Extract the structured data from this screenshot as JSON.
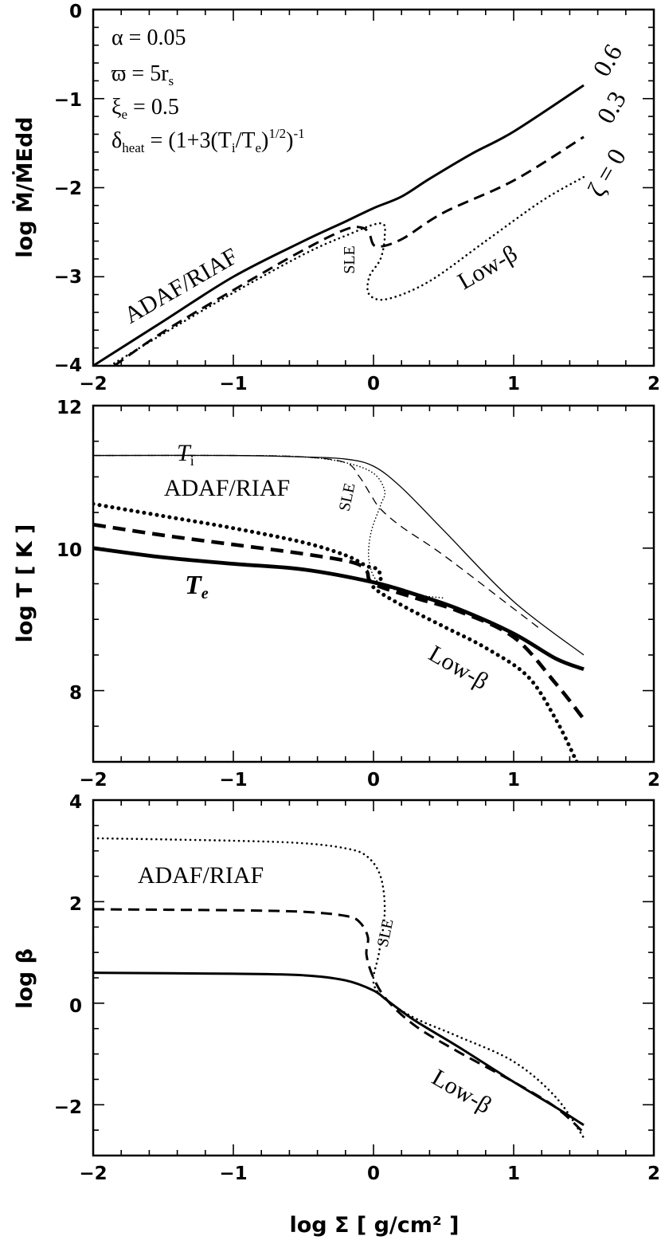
{
  "figure": {
    "xlabel": "log Σ [ g/cm² ]",
    "xticks": [
      "−2",
      "−1",
      "0",
      "1",
      "2"
    ]
  },
  "chart_data": [
    {
      "type": "line",
      "panel": "top",
      "xlim": [
        -2,
        2
      ],
      "ylim": [
        -4,
        0
      ],
      "ylabel": "log Ṁ/ṀEdd",
      "yticks": [
        "0",
        "−1",
        "−2",
        "−3",
        "−4"
      ],
      "params": {
        "alpha": "α = 0.05",
        "varpi": "ϖ = 5r",
        "varpi_sub": "s",
        "xi": "ξ",
        "xi_sub": "e",
        "xi_val": " = 0.5",
        "delta": "δ",
        "delta_sub": "heat",
        "delta_val": " = (1+3(T",
        "delta_i": "i",
        "delta_mid": "/T",
        "delta_e": "e",
        "delta_end": ")",
        "delta_exp1": "1/2",
        "delta_end2": ")",
        "delta_exp2": "-1"
      },
      "labels": {
        "adaf": "ADAF/RIAF",
        "sle": "SLE",
        "lowbeta": "Low-β",
        "z06": "0.6",
        "z03": "0.3",
        "z0": "ζ = 0"
      },
      "series": [
        {
          "name": "0.6",
          "style": "solid",
          "x": [
            -2,
            -1.5,
            -1,
            -0.5,
            -0.2,
            0,
            0.2,
            0.4,
            0.7,
            1.0,
            1.5
          ],
          "y": [
            -4.0,
            -3.5,
            -3.0,
            -2.6,
            -2.38,
            -2.23,
            -2.1,
            -1.9,
            -1.62,
            -1.37,
            -0.85
          ]
        },
        {
          "name": "0.3",
          "style": "dashed",
          "x": [
            -1.85,
            -1.5,
            -1,
            -0.5,
            -0.2,
            -0.08,
            -0.03,
            0.02,
            0.2,
            0.5,
            1.0,
            1.5
          ],
          "y": [
            -4.0,
            -3.62,
            -3.15,
            -2.7,
            -2.47,
            -2.45,
            -2.52,
            -2.66,
            -2.58,
            -2.28,
            -1.92,
            -1.43
          ]
        },
        {
          "name": "ζ = 0",
          "style": "dotted",
          "x": [
            -1.88,
            -1.5,
            -1,
            -0.5,
            -0.2,
            0.05,
            0.08,
            0.05,
            -0.03,
            -0.03,
            0.1,
            0.4,
            0.8,
            1.2,
            1.5
          ],
          "y": [
            -4.0,
            -3.64,
            -3.18,
            -2.75,
            -2.54,
            -2.4,
            -2.55,
            -2.8,
            -3.0,
            -3.2,
            -3.25,
            -3.05,
            -2.6,
            -2.15,
            -1.88
          ]
        }
      ]
    },
    {
      "type": "line",
      "panel": "middle",
      "xlim": [
        -2,
        2
      ],
      "ylim": [
        7,
        12
      ],
      "ylabel": "log T [ K ]",
      "yticks": [
        "12",
        "10",
        "8"
      ],
      "labels": {
        "ti": "T",
        "ti_sub": "i",
        "adaf": "ADAF/RIAF",
        "sle": "SLE",
        "te": "T",
        "te_sub": "e",
        "lowbeta": "Low-β"
      },
      "series": [
        {
          "name": "Ti (ζ=0.6)",
          "style": "thin-solid",
          "x": [
            -2,
            -1,
            -0.5,
            -0.2,
            0,
            0.2,
            0.5,
            1.0,
            1.5
          ],
          "y": [
            11.3,
            11.3,
            11.28,
            11.25,
            11.15,
            10.85,
            10.25,
            9.25,
            8.5
          ]
        },
        {
          "name": "Ti (ζ=0.3)",
          "style": "thin-dashed",
          "x": [
            -2,
            -1,
            -0.5,
            -0.2,
            -0.1,
            -0.02,
            0.05,
            0.2,
            0.5,
            1.0,
            1.2
          ],
          "y": [
            11.3,
            11.3,
            11.28,
            11.2,
            11.0,
            10.75,
            10.55,
            10.3,
            9.9,
            9.15,
            8.85
          ]
        },
        {
          "name": "Ti (ζ=0)",
          "style": "thin-dotted",
          "x": [
            -2,
            -1,
            -0.5,
            -0.2,
            0.0,
            0.08,
            0.05,
            -0.02,
            -0.03,
            0.05,
            0.3,
            0.5
          ],
          "y": [
            11.3,
            11.3,
            11.28,
            11.2,
            11.05,
            10.8,
            10.6,
            10.2,
            9.8,
            9.5,
            9.35,
            9.3
          ]
        },
        {
          "name": "Te (ζ=0.6)",
          "style": "thick-solid",
          "x": [
            -2,
            -1.5,
            -1,
            -0.5,
            0,
            0.3,
            0.6,
            1.0,
            1.3,
            1.5
          ],
          "y": [
            10.0,
            9.87,
            9.78,
            9.7,
            9.52,
            9.35,
            9.15,
            8.8,
            8.45,
            8.3
          ]
        },
        {
          "name": "Te (ζ=0.3)",
          "style": "thick-dashed",
          "x": [
            -2,
            -1.5,
            -1,
            -0.5,
            -0.15,
            -0.05,
            0,
            0.3,
            0.6,
            1.0,
            1.3,
            1.5
          ],
          "y": [
            10.33,
            10.18,
            10.05,
            9.92,
            9.8,
            9.68,
            9.5,
            9.3,
            9.12,
            8.75,
            8.1,
            7.6
          ]
        },
        {
          "name": "Te (ζ=0)",
          "style": "thick-dotted",
          "x": [
            -2,
            -1.5,
            -1,
            -0.5,
            -0.2,
            -0.05,
            0.03,
            0.05,
            0,
            0.2,
            0.5,
            0.8,
            1.1,
            1.3,
            1.45
          ],
          "y": [
            10.62,
            10.45,
            10.28,
            10.08,
            9.9,
            9.75,
            9.7,
            9.55,
            9.45,
            9.2,
            8.9,
            8.6,
            8.2,
            7.6,
            7.0
          ]
        }
      ]
    },
    {
      "type": "line",
      "panel": "bottom",
      "xlim": [
        -2,
        2
      ],
      "ylim": [
        -3,
        4
      ],
      "ylabel": "log β",
      "yticks": [
        "4",
        "2",
        "0",
        "−2"
      ],
      "labels": {
        "adaf": "ADAF/RIAF",
        "sle": "SLE",
        "lowbeta": "Low-β"
      },
      "series": [
        {
          "name": "0.6",
          "style": "solid",
          "x": [
            -2,
            -1,
            -0.5,
            -0.2,
            0,
            0.1,
            0.3,
            0.6,
            1.0,
            1.3,
            1.5
          ],
          "y": [
            0.6,
            0.58,
            0.55,
            0.45,
            0.25,
            0.05,
            -0.35,
            -0.85,
            -1.55,
            -2.05,
            -2.4
          ]
        },
        {
          "name": "0.3",
          "style": "dashed",
          "x": [
            -2,
            -1,
            -0.5,
            -0.2,
            -0.1,
            -0.04,
            -0.05,
            0.0,
            0.1,
            0.3,
            0.6,
            1.0,
            1.3,
            1.5
          ],
          "y": [
            1.85,
            1.83,
            1.8,
            1.72,
            1.6,
            1.3,
            0.95,
            0.5,
            0.05,
            -0.45,
            -0.95,
            -1.55,
            -2.05,
            -2.55
          ]
        },
        {
          "name": "ζ = 0",
          "style": "dotted",
          "x": [
            -2,
            -1,
            -0.5,
            -0.2,
            -0.05,
            0.05,
            0.08,
            0.04,
            0.0,
            0.1,
            0.3,
            0.6,
            1.0,
            1.3,
            1.5
          ],
          "y": [
            3.25,
            3.2,
            3.15,
            3.05,
            2.9,
            2.5,
            1.8,
            1.0,
            0.4,
            0.05,
            -0.3,
            -0.65,
            -1.15,
            -1.85,
            -2.65
          ]
        }
      ]
    }
  ]
}
